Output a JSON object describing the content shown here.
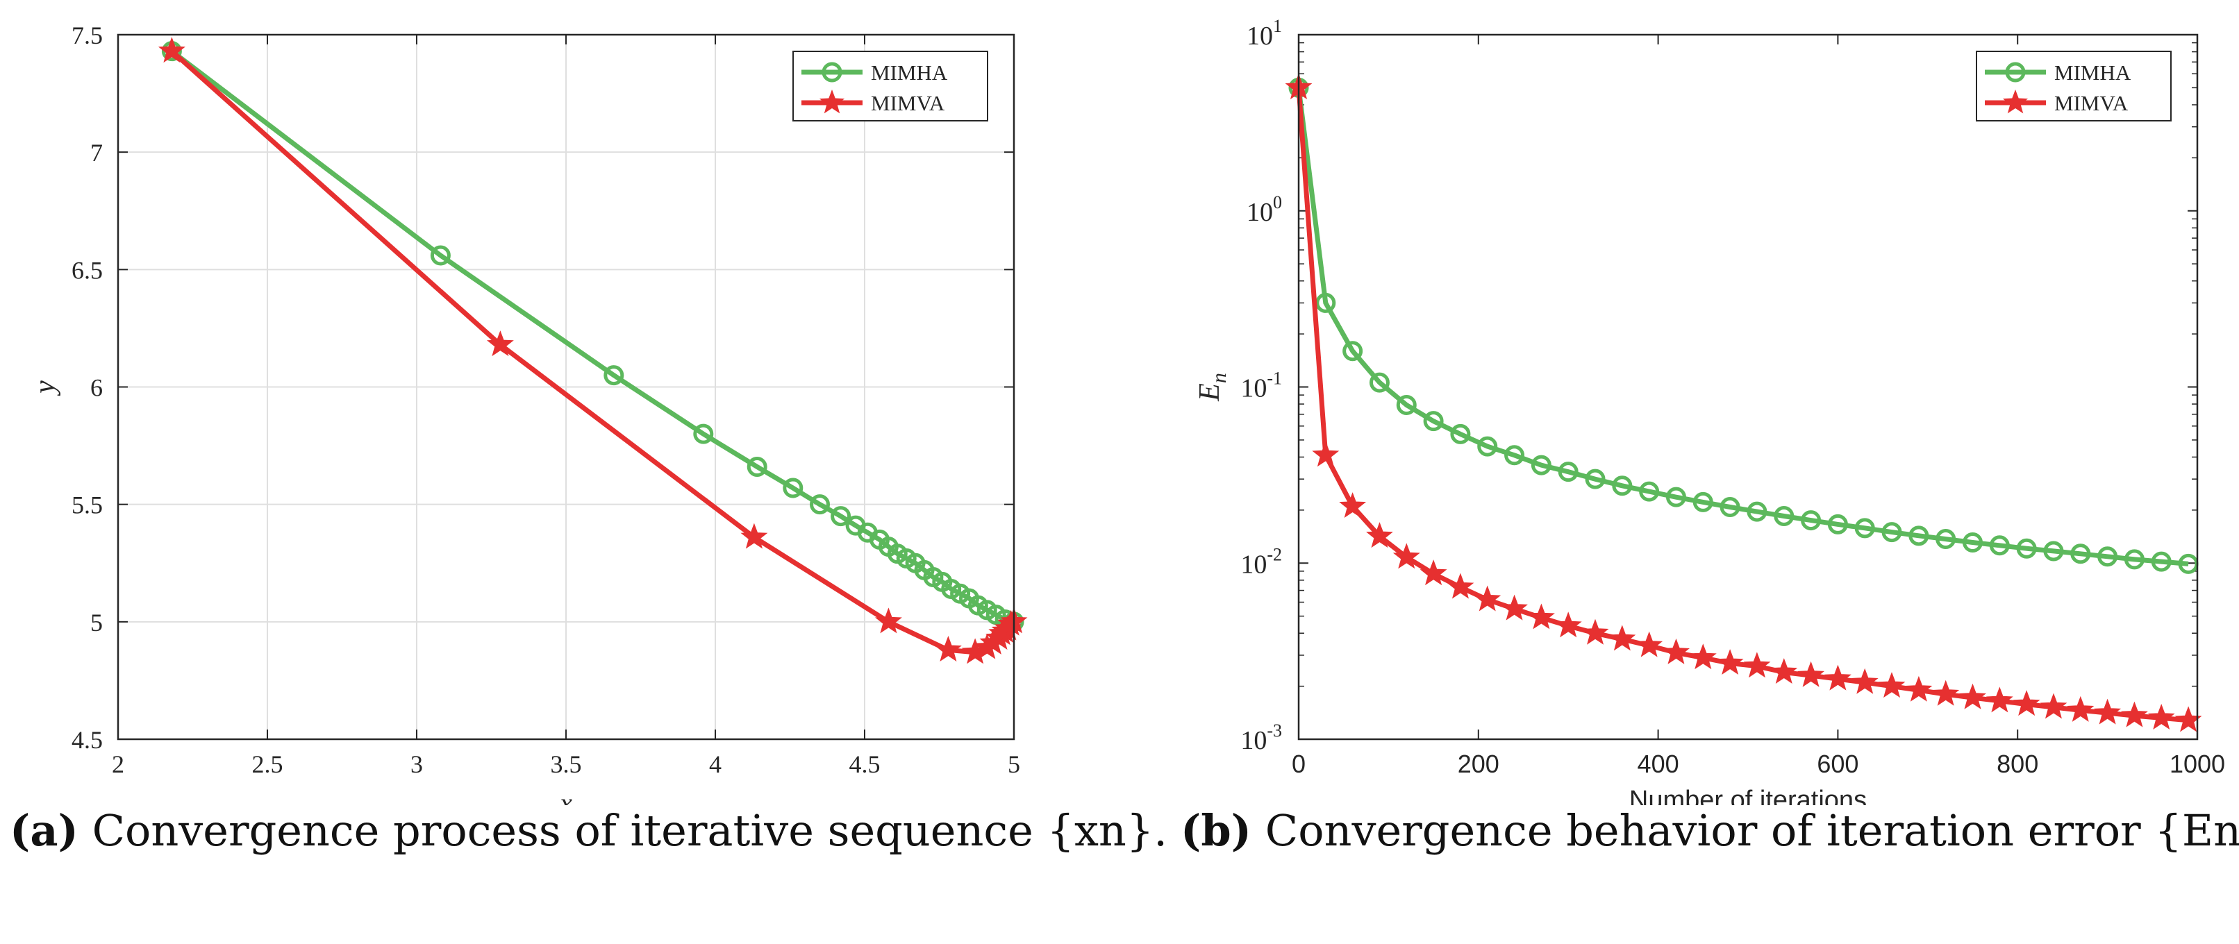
{
  "colors": {
    "mimha": "#5cb85c",
    "mimva": "#e63030",
    "grid": "#dfdfdf",
    "axis": "#262626"
  },
  "chart_data": [
    {
      "type": "line",
      "panel_label": "(a)",
      "caption": "Convergence process of iterative sequence {xn}.",
      "xlabel": "x",
      "ylabel": "y",
      "xlim": [
        2,
        5
      ],
      "ylim": [
        4.5,
        7.5
      ],
      "x_ticks": [
        2,
        2.5,
        3,
        3.5,
        4,
        4.5,
        5
      ],
      "x_tick_labels": [
        "2",
        "2.5",
        "3",
        "3.5",
        "4",
        "4.5",
        "5"
      ],
      "y_ticks": [
        4.5,
        5,
        5.5,
        6,
        6.5,
        7,
        7.5
      ],
      "y_tick_labels": [
        "4.5",
        "5",
        "5.5",
        "6",
        "6.5",
        "7",
        "7.5"
      ],
      "grid": true,
      "legend_position": "top-right",
      "series": [
        {
          "name": "MIMHA",
          "marker": "circle",
          "x": [
            2.18,
            3.08,
            3.66,
            3.96,
            4.14,
            4.26,
            4.35,
            4.42,
            4.47,
            4.51,
            4.55,
            4.58,
            4.61,
            4.64,
            4.67,
            4.7,
            4.73,
            4.76,
            4.79,
            4.82,
            4.85,
            4.88,
            4.91,
            4.94,
            4.97,
            5.0
          ],
          "y": [
            7.43,
            6.56,
            6.05,
            5.8,
            5.66,
            5.57,
            5.5,
            5.45,
            5.41,
            5.38,
            5.35,
            5.32,
            5.29,
            5.27,
            5.25,
            5.22,
            5.19,
            5.17,
            5.14,
            5.12,
            5.1,
            5.07,
            5.05,
            5.03,
            5.01,
            5.0
          ]
        },
        {
          "name": "MIMVA",
          "marker": "star",
          "x": [
            2.18,
            3.28,
            4.13,
            4.58,
            4.78,
            4.87,
            4.91,
            4.93,
            4.95,
            4.96,
            4.97,
            4.98,
            4.99,
            5.0
          ],
          "y": [
            7.43,
            6.18,
            5.36,
            5.0,
            4.88,
            4.87,
            4.89,
            4.91,
            4.93,
            4.95,
            4.96,
            4.97,
            4.99,
            5.0
          ]
        }
      ]
    },
    {
      "type": "line",
      "panel_label": "(b)",
      "caption": "Convergence behavior of iteration error {En}.",
      "xlabel": "Number of iterations",
      "ylabel": "En",
      "yscale": "log",
      "xlim": [
        0,
        1000
      ],
      "ylim": [
        0.001,
        10
      ],
      "x_ticks": [
        0,
        200,
        400,
        600,
        800,
        1000
      ],
      "x_tick_labels": [
        "0",
        "200",
        "400",
        "600",
        "800",
        "1000"
      ],
      "y_ticks": [
        0.001,
        0.01,
        0.1,
        1,
        10
      ],
      "y_tick_bases": [
        "10",
        "10",
        "10",
        "10",
        "10"
      ],
      "y_tick_exps": [
        "-3",
        "-2",
        "-1",
        "0",
        "1"
      ],
      "grid": false,
      "legend_position": "top-right",
      "series": [
        {
          "name": "MIMHA",
          "marker": "circle",
          "x": [
            0,
            30,
            60,
            90,
            120,
            150,
            180,
            210,
            240,
            270,
            300,
            330,
            360,
            390,
            420,
            450,
            480,
            510,
            540,
            570,
            600,
            630,
            660,
            690,
            720,
            750,
            780,
            810,
            840,
            870,
            900,
            930,
            960,
            990
          ],
          "y": [
            5.0,
            0.3,
            0.16,
            0.106,
            0.079,
            0.064,
            0.054,
            0.046,
            0.041,
            0.036,
            0.033,
            0.03,
            0.0275,
            0.0255,
            0.0237,
            0.0222,
            0.0208,
            0.0196,
            0.0185,
            0.0175,
            0.0166,
            0.0158,
            0.015,
            0.0143,
            0.0137,
            0.0131,
            0.0126,
            0.0121,
            0.0117,
            0.0113,
            0.0109,
            0.0105,
            0.0102,
            0.0099
          ]
        },
        {
          "name": "MIMVA",
          "marker": "star",
          "x": [
            0,
            30,
            60,
            90,
            120,
            150,
            180,
            210,
            240,
            270,
            300,
            330,
            360,
            390,
            420,
            450,
            480,
            510,
            540,
            570,
            600,
            630,
            660,
            690,
            720,
            750,
            780,
            810,
            840,
            870,
            900,
            930,
            960,
            990
          ],
          "y": [
            5.0,
            0.041,
            0.021,
            0.0142,
            0.0108,
            0.0087,
            0.0073,
            0.0062,
            0.0055,
            0.0049,
            0.0044,
            0.004,
            0.0037,
            0.0034,
            0.0031,
            0.0029,
            0.0027,
            0.0026,
            0.0024,
            0.0023,
            0.0022,
            0.0021,
            0.002,
            0.0019,
            0.0018,
            0.00172,
            0.00165,
            0.00158,
            0.00152,
            0.00146,
            0.00141,
            0.00136,
            0.00132,
            0.00128
          ]
        }
      ]
    }
  ]
}
